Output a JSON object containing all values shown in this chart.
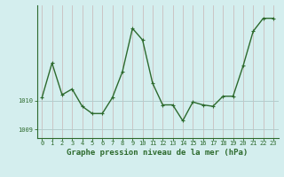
{
  "x": [
    0,
    1,
    2,
    3,
    4,
    5,
    6,
    7,
    8,
    9,
    10,
    11,
    12,
    13,
    14,
    15,
    16,
    17,
    18,
    19,
    20,
    21,
    22,
    23
  ],
  "y": [
    1010.1,
    1011.3,
    1010.2,
    1010.4,
    1009.8,
    1009.55,
    1009.55,
    1010.1,
    1011.0,
    1012.5,
    1012.1,
    1010.6,
    1009.85,
    1009.85,
    1009.3,
    1009.95,
    1009.85,
    1009.8,
    1010.15,
    1010.15,
    1011.2,
    1012.4,
    1012.85,
    1012.85
  ],
  "line_color": "#2d6a2d",
  "marker_color": "#2d6a2d",
  "bg_color": "#d4eeee",
  "vgrid_color": "#c8b4b4",
  "hgrid_color": "#b4cccc",
  "title": "Graphe pression niveau de la mer (hPa)",
  "ylim_min": 1008.7,
  "ylim_max": 1013.3,
  "ytick_positions": [
    1009.0,
    1010.0
  ],
  "ytick_labels": [
    "1009",
    "1010"
  ],
  "xtick_positions": [
    0,
    1,
    2,
    3,
    4,
    5,
    6,
    7,
    8,
    9,
    10,
    11,
    12,
    13,
    14,
    15,
    16,
    17,
    18,
    19,
    20,
    21,
    22,
    23
  ],
  "xtick_labels": [
    "0",
    "1",
    "2",
    "3",
    "4",
    "5",
    "6",
    "7",
    "8",
    "9",
    "10",
    "11",
    "12",
    "13",
    "14",
    "15",
    "16",
    "17",
    "18",
    "19",
    "20",
    "21",
    "22",
    "23"
  ],
  "title_fontsize": 6.5,
  "tick_fontsize": 5.0,
  "linewidth": 1.0,
  "markersize": 2.2
}
